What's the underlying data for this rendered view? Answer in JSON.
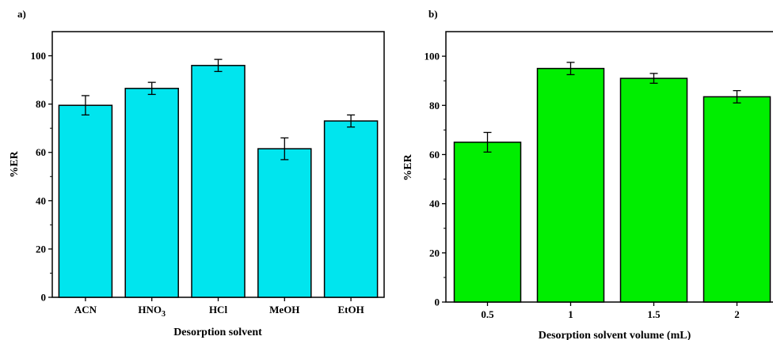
{
  "chart_data": [
    {
      "panel_label": "a)",
      "type": "bar",
      "categories": [
        "ACN",
        "HNO3",
        "HCl",
        "MeOH",
        "EtOH"
      ],
      "values": [
        79.5,
        86.5,
        96,
        61.5,
        73
      ],
      "errors": [
        4,
        2.5,
        2.5,
        4.5,
        2.5
      ],
      "xlabel": "Desorption solvent",
      "ylabel": "%ER",
      "ylim": [
        0,
        110
      ],
      "yticks": [
        0,
        20,
        40,
        60,
        80,
        100
      ],
      "bar_color": "#00e5ee",
      "grid": false
    },
    {
      "panel_label": "b)",
      "type": "bar",
      "categories": [
        "0.5",
        "1",
        "1.5",
        "2"
      ],
      "values": [
        65,
        95,
        91,
        83.5
      ],
      "errors": [
        4,
        2.5,
        2,
        2.5
      ],
      "xlabel": "Desorption solvent volume (mL)",
      "ylabel": "%ER",
      "ylim": [
        0,
        110
      ],
      "yticks": [
        0,
        20,
        40,
        60,
        80,
        100
      ],
      "bar_color": "#00ee00",
      "grid": false
    }
  ]
}
